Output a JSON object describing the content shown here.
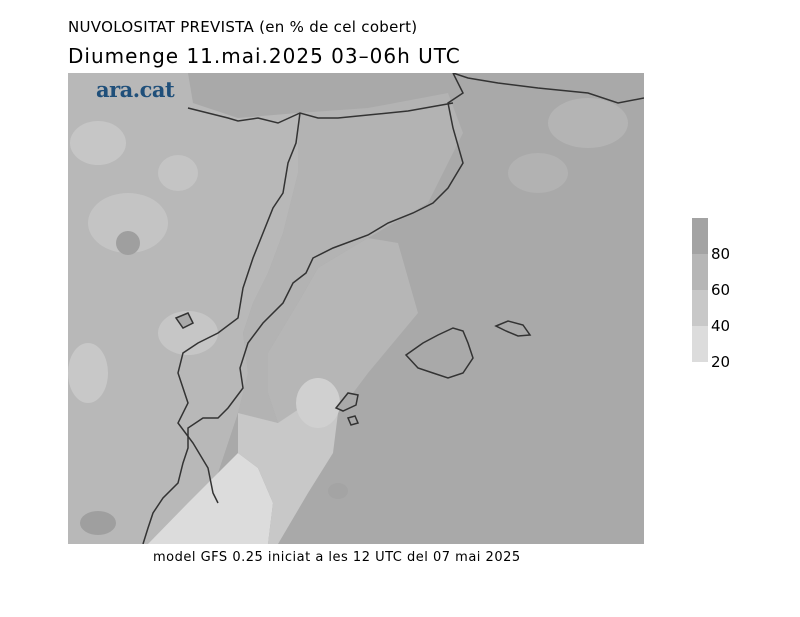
{
  "header": {
    "subtitle": "NUVOLOSITAT PREVISTA (en % de cel cobert)",
    "title": "Diumenge  11.mai.2025 03–06h UTC"
  },
  "map": {
    "logo_text": "ara.cat",
    "colors": {
      "sea": "#a9a9a9",
      "land": "#b8b8b8",
      "low": "#c9c9c9",
      "clear": "#dcdcdc",
      "dark": "#9c9c9c",
      "border": "#333333"
    }
  },
  "legend": {
    "bands": [
      {
        "from": 20,
        "to": 40,
        "color": "#dcdcdc"
      },
      {
        "from": 40,
        "to": 60,
        "color": "#c8c8c8"
      },
      {
        "from": 60,
        "to": 80,
        "color": "#b6b6b6"
      },
      {
        "from": 80,
        "to": 100,
        "color": "#a3a3a3"
      }
    ],
    "labels": [
      "80",
      "60",
      "40",
      "20"
    ]
  },
  "footer": {
    "text": "model GFS 0.25 iniciat a les 12 UTC del 07 mai 2025"
  }
}
